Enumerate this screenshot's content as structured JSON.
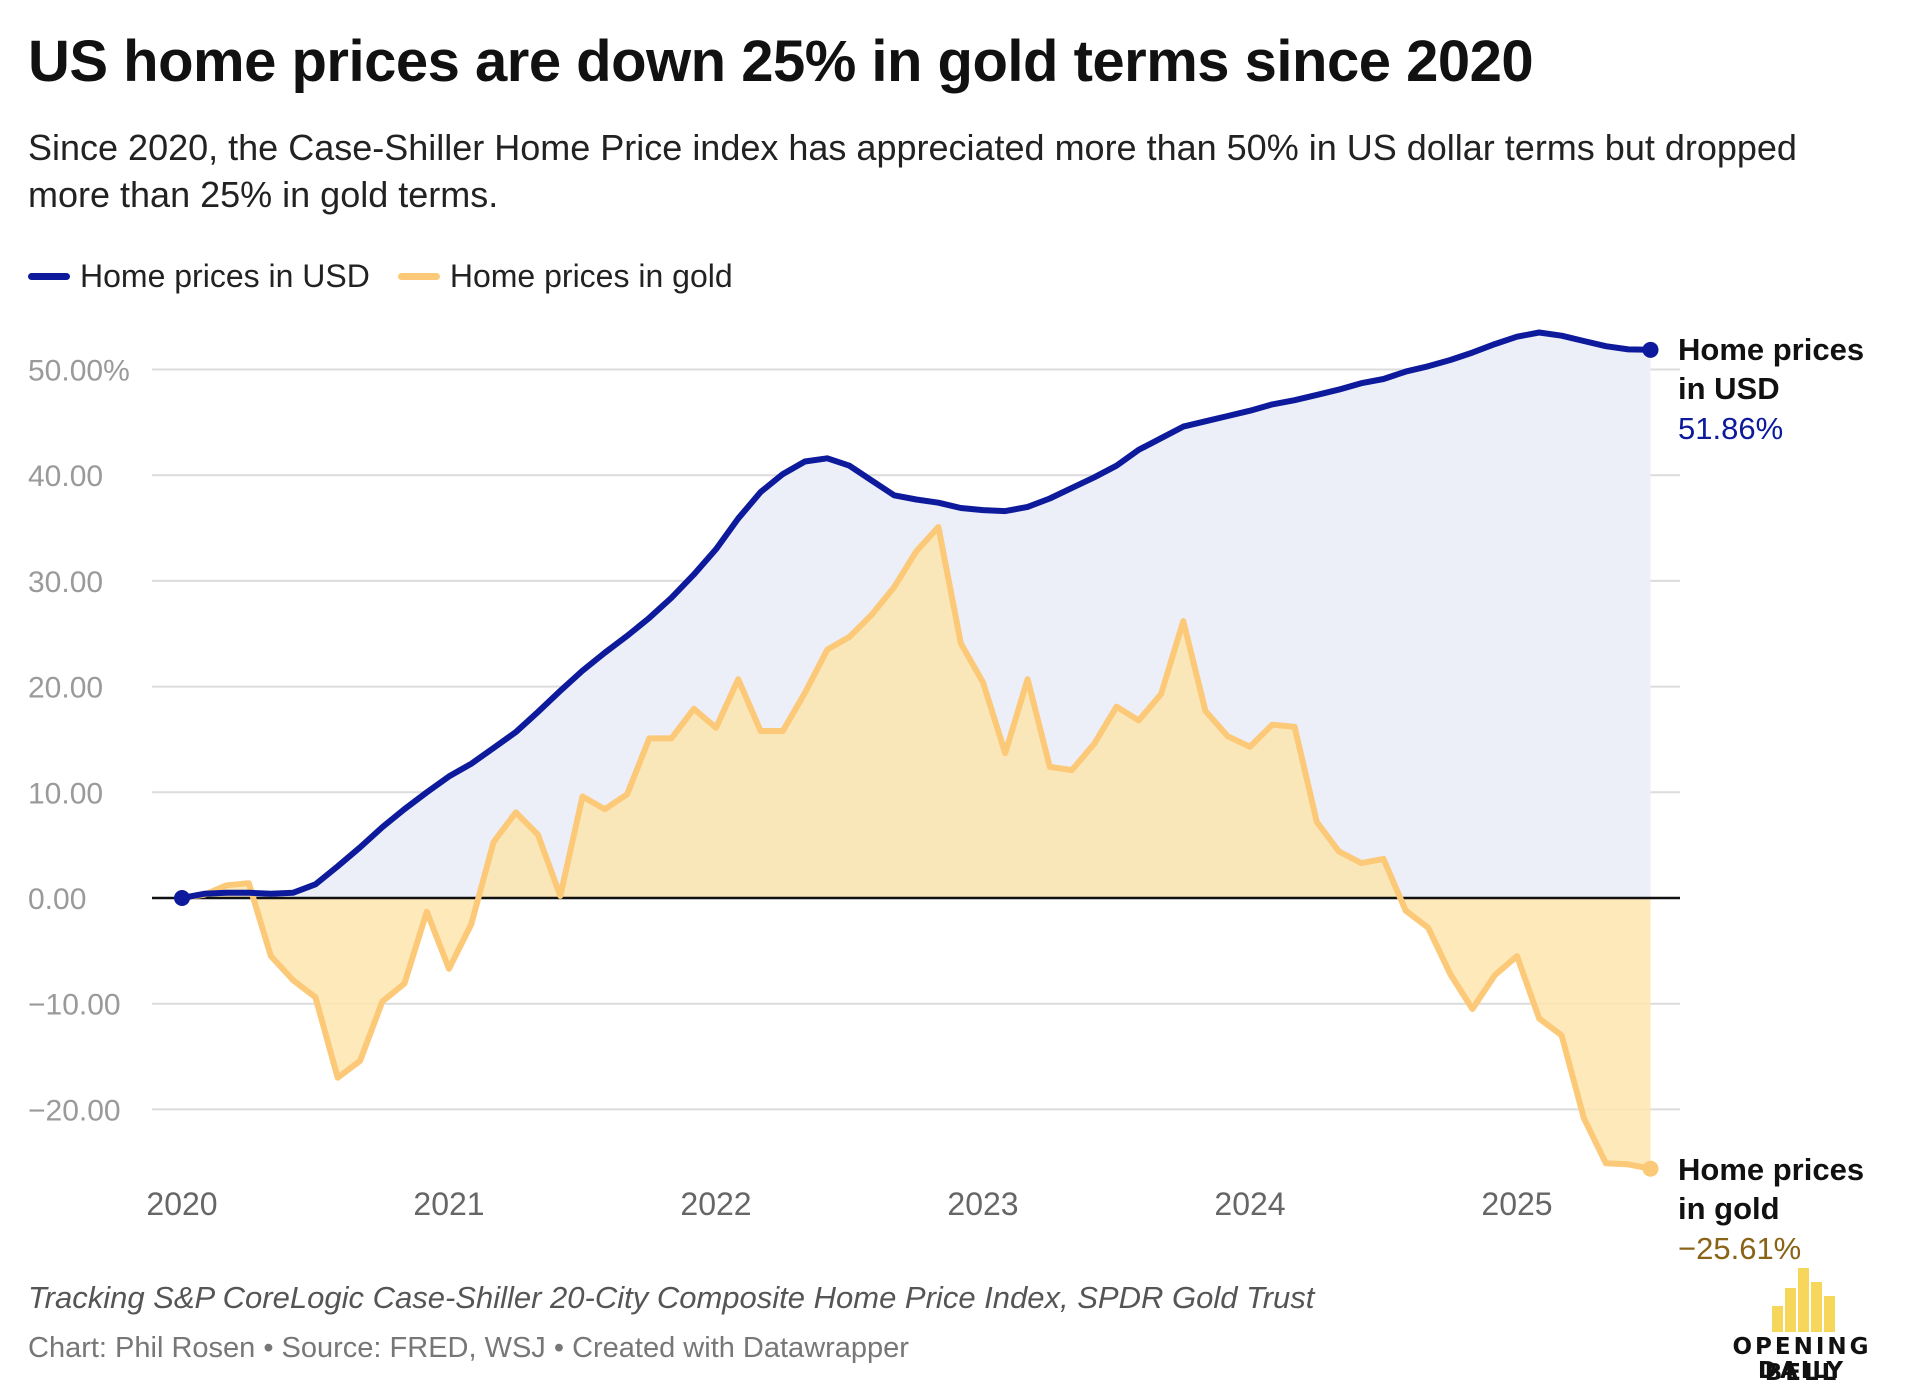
{
  "title": "US home prices are down 25% in gold terms since 2020",
  "subtitle": "Since 2020, the Case-Shiller Home Price index has appreciated more than 50% in US dollar terms but dropped more than 25% in gold terms.",
  "note": "Tracking S&P CoreLogic Case-Shiller 20-City Composite Home Price Index, SPDR Gold Trust",
  "credit": "Chart: Phil Rosen • Source: FRED, WSJ • Created with Datawrapper",
  "logo": {
    "line1": "OPENING BELL",
    "line2": "DAILY"
  },
  "colors": {
    "usd_line": "#0d1a9c",
    "usd_fill": "#eceef8",
    "gold_line": "#fcc978",
    "gold_fill": "#fde5ae",
    "gold_label": "#8a6416",
    "logo_bars": "#f7d65c"
  },
  "chart_data": {
    "type": "line",
    "y_ticks": [
      "50.00%",
      "40.00",
      "30.00",
      "20.00",
      "10.00",
      "0.00",
      "−10.00",
      "−20.00"
    ],
    "y_tick_values": [
      50,
      40,
      30,
      20,
      10,
      0,
      -10,
      -20
    ],
    "ylim": [
      -26,
      54
    ],
    "x_ticks": [
      "2020",
      "2021",
      "2022",
      "2023",
      "2024",
      "2025"
    ],
    "x_tick_values": [
      2020,
      2021,
      2022,
      2023,
      2024,
      2025
    ],
    "xlim": [
      2020,
      2025.5
    ],
    "grid": true,
    "legend": "top-left",
    "series": [
      {
        "name": "Home prices in USD",
        "end_label": [
          "Home prices",
          "in USD"
        ],
        "end_value": "51.86%",
        "x": [
          2020,
          2020.083,
          2020.167,
          2020.25,
          2020.333,
          2020.417,
          2020.5,
          2020.583,
          2020.667,
          2020.75,
          2020.833,
          2020.917,
          2021,
          2021.083,
          2021.167,
          2021.25,
          2021.333,
          2021.417,
          2021.5,
          2021.583,
          2021.667,
          2021.75,
          2021.833,
          2021.917,
          2022,
          2022.083,
          2022.167,
          2022.25,
          2022.333,
          2022.417,
          2022.5,
          2022.583,
          2022.667,
          2022.75,
          2022.833,
          2022.917,
          2023,
          2023.083,
          2023.167,
          2023.25,
          2023.333,
          2023.417,
          2023.5,
          2023.583,
          2023.667,
          2023.75,
          2023.833,
          2023.917,
          2024,
          2024.083,
          2024.167,
          2024.25,
          2024.333,
          2024.417,
          2024.5,
          2024.583,
          2024.667,
          2024.75,
          2024.833,
          2024.917,
          2025,
          2025.083,
          2025.167,
          2025.25,
          2025.333,
          2025.417,
          2025.5
        ],
        "values": [
          0,
          0.4,
          0.5,
          0.5,
          0.4,
          0.5,
          1.3,
          3,
          4.8,
          6.7,
          8.4,
          10,
          11.5,
          12.7,
          14.2,
          15.7,
          17.6,
          19.6,
          21.5,
          23.2,
          24.8,
          26.5,
          28.4,
          30.6,
          33,
          35.9,
          38.4,
          40.1,
          41.3,
          41.6,
          40.9,
          39.5,
          38.1,
          37.7,
          37.4,
          36.9,
          36.7,
          36.6,
          37,
          37.8,
          38.8,
          39.8,
          40.9,
          42.4,
          43.5,
          44.6,
          45.1,
          45.6,
          46.1,
          46.7,
          47.1,
          47.6,
          48.1,
          48.7,
          49.1,
          49.8,
          50.3,
          50.9,
          51.6,
          52.4,
          53.1,
          53.5,
          53.2,
          52.7,
          52.2,
          51.9,
          51.86
        ]
      },
      {
        "name": "Home prices in gold",
        "end_label": [
          "Home prices",
          "in gold"
        ],
        "end_value": "−25.61%",
        "x": [
          2020,
          2020.083,
          2020.167,
          2020.25,
          2020.333,
          2020.417,
          2020.5,
          2020.583,
          2020.667,
          2020.75,
          2020.833,
          2020.917,
          2021,
          2021.083,
          2021.167,
          2021.25,
          2021.333,
          2021.417,
          2021.5,
          2021.583,
          2021.667,
          2021.75,
          2021.833,
          2021.917,
          2022,
          2022.083,
          2022.167,
          2022.25,
          2022.333,
          2022.417,
          2022.5,
          2022.583,
          2022.667,
          2022.75,
          2022.833,
          2022.917,
          2023,
          2023.083,
          2023.167,
          2023.25,
          2023.333,
          2023.417,
          2023.5,
          2023.583,
          2023.667,
          2023.75,
          2023.833,
          2023.917,
          2024,
          2024.083,
          2024.167,
          2024.25,
          2024.333,
          2024.417,
          2024.5,
          2024.583,
          2024.667,
          2024.75,
          2024.833,
          2024.917,
          2025,
          2025.083,
          2025.167,
          2025.25,
          2025.333,
          2025.417,
          2025.5
        ],
        "values": [
          0,
          0.3,
          1.2,
          1.4,
          -5.5,
          -7.8,
          -9.4,
          -17,
          -15.4,
          -9.8,
          -8.1,
          -1.3,
          -6.7,
          -2.5,
          5.3,
          8.1,
          6,
          0.2,
          9.6,
          8.4,
          9.8,
          15.1,
          15.1,
          17.9,
          16.1,
          20.7,
          15.8,
          15.8,
          19.4,
          23.5,
          24.7,
          26.8,
          29.4,
          32.8,
          35.1,
          24.1,
          20.4,
          13.7,
          20.7,
          12.4,
          12.1,
          14.6,
          18.1,
          16.8,
          19.3,
          26.2,
          17.7,
          15.3,
          14.3,
          16.4,
          16.2,
          7.2,
          4.4,
          3.3,
          3.7,
          -1.2,
          -2.8,
          -7.2,
          -10.5,
          -7.3,
          -5.5,
          -11.4,
          -13,
          -20.8,
          -25.1,
          -25.2,
          -25.61
        ]
      }
    ]
  }
}
